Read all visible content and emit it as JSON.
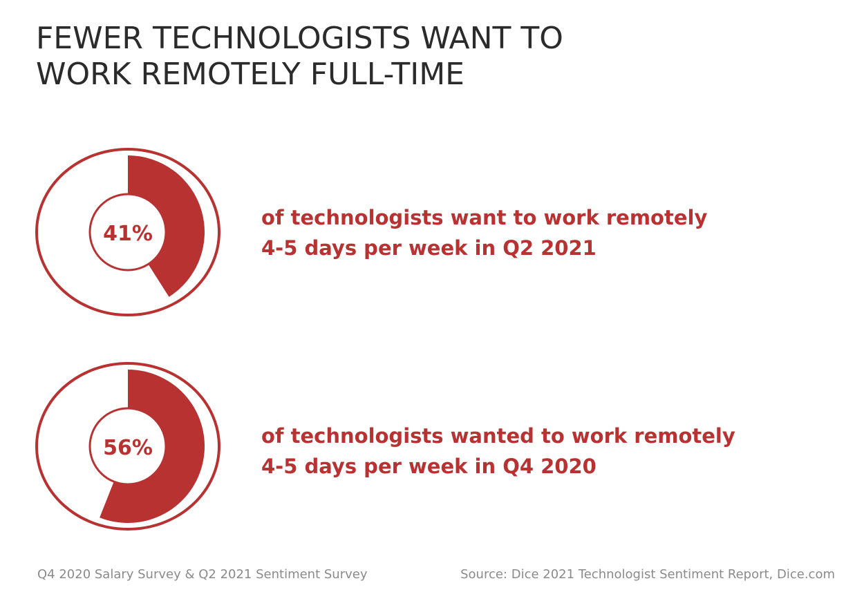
{
  "colors": {
    "accent": "#b83232",
    "title": "#2b2b2b",
    "footer": "#8a8a8a"
  },
  "title": {
    "line1": "FEWER TECHNOLOGISTS WANT TO",
    "line2": "WORK REMOTELY FULL-TIME"
  },
  "chart_data": [
    {
      "type": "pie",
      "value_percent": 41,
      "center_label": "41%",
      "label_line1": "of technologists want to work remotely",
      "label_line2": "4-5 days per week in Q2 2021"
    },
    {
      "type": "pie",
      "value_percent": 56,
      "center_label": "56%",
      "label_line1": "of technologists wanted to work remotely",
      "label_line2": "4-5 days per week in Q4 2020"
    }
  ],
  "footer": {
    "survey": "Q4 2020 Salary Survey & Q2 2021 Sentiment Survey",
    "source": "Source: Dice 2021 Technologist Sentiment Report, Dice.com"
  }
}
